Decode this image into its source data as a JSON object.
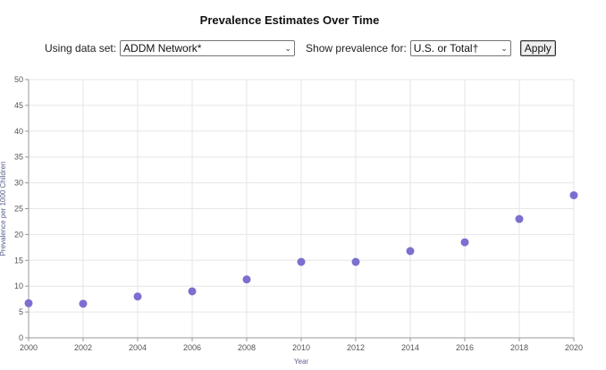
{
  "header": {
    "title": "Prevalence Estimates Over Time"
  },
  "controls": {
    "dataset_label": "Using data set:",
    "dataset_value": "ADDM Network*",
    "prevalence_label": "Show prevalence for:",
    "prevalence_value": "U.S. or Total†",
    "apply_label": "Apply"
  },
  "colors": {
    "point": "#7b6fcf",
    "grid": "#e6e6e6",
    "axis": "#999999"
  },
  "chart_data": {
    "type": "scatter",
    "xlabel": "Year",
    "ylabel": "Prevalence per 1000 Children",
    "xlim": [
      2000,
      2020
    ],
    "ylim": [
      0,
      50
    ],
    "xticks": [
      2000,
      2002,
      2004,
      2006,
      2008,
      2010,
      2012,
      2014,
      2016,
      2018,
      2020
    ],
    "yticks": [
      0,
      5,
      10,
      15,
      20,
      25,
      30,
      35,
      40,
      45,
      50
    ],
    "grid": true,
    "x": [
      2000,
      2002,
      2004,
      2006,
      2008,
      2010,
      2012,
      2014,
      2016,
      2018,
      2020
    ],
    "y": [
      6.7,
      6.6,
      8.0,
      9.0,
      11.3,
      14.7,
      14.7,
      16.8,
      18.5,
      23.0,
      27.6
    ]
  }
}
